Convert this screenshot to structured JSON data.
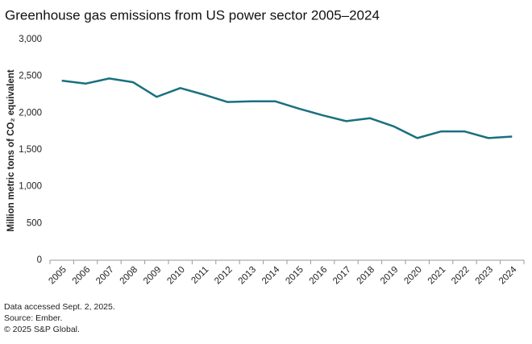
{
  "chart_data": {
    "type": "line",
    "title": "Greenhouse gas emissions from US power sector 2005–2024",
    "y_label": "Million metric tons of CO₂ equivalent",
    "categories": [
      "2005",
      "2006",
      "2007",
      "2008",
      "2009",
      "2010",
      "2011",
      "2012",
      "2013",
      "2014",
      "2015",
      "2016",
      "2017",
      "2018",
      "2019",
      "2020",
      "2021",
      "2022",
      "2023",
      "2024"
    ],
    "series": [
      {
        "name": "Emissions",
        "color": "#19707f",
        "values": [
          2440,
          2400,
          2470,
          2420,
          2220,
          2340,
          2250,
          2150,
          2160,
          2160,
          2060,
          1970,
          1890,
          1930,
          1820,
          1660,
          1750,
          1750,
          1660,
          1680
        ]
      }
    ],
    "ylim": [
      0,
      3000
    ],
    "yticks": [
      0,
      500,
      {
        "value": 1000,
        "label": "1,000"
      },
      {
        "value": 1500,
        "label": "1,500"
      },
      {
        "value": 2000,
        "label": "2,000"
      },
      {
        "value": 2500,
        "label": "2,500"
      },
      {
        "value": 3000,
        "label": "3,000"
      }
    ],
    "grid": false,
    "notes": [
      "Data accessed Sept. 2, 2025.",
      "Source: Ember.",
      "© 2025 S&P Global."
    ]
  }
}
